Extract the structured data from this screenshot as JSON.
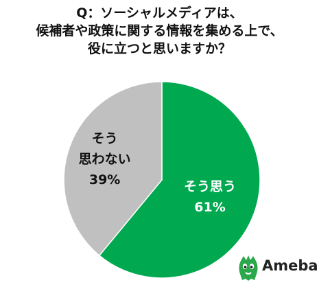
{
  "title": {
    "lines": [
      "Q：ソーシャルメディアは、",
      "候補者や政策に関する情報を集める上で、",
      "役に立つと思いますか？"
    ]
  },
  "chart_data": {
    "type": "pie",
    "start": "12 o'clock",
    "direction": "clockwise",
    "slices": [
      {
        "label": "そう思う",
        "value": 61,
        "value_label": "61%",
        "color": "#00a84f",
        "text_color": "#ffffff"
      },
      {
        "label": "そう\n思わない",
        "value": 39,
        "value_label": "39%",
        "color": "#c0c0c0",
        "text_color": "#111111"
      }
    ]
  },
  "logo": {
    "text": "Ameba",
    "color": "#2ba84a",
    "icon": "ameba-mascot-icon"
  }
}
